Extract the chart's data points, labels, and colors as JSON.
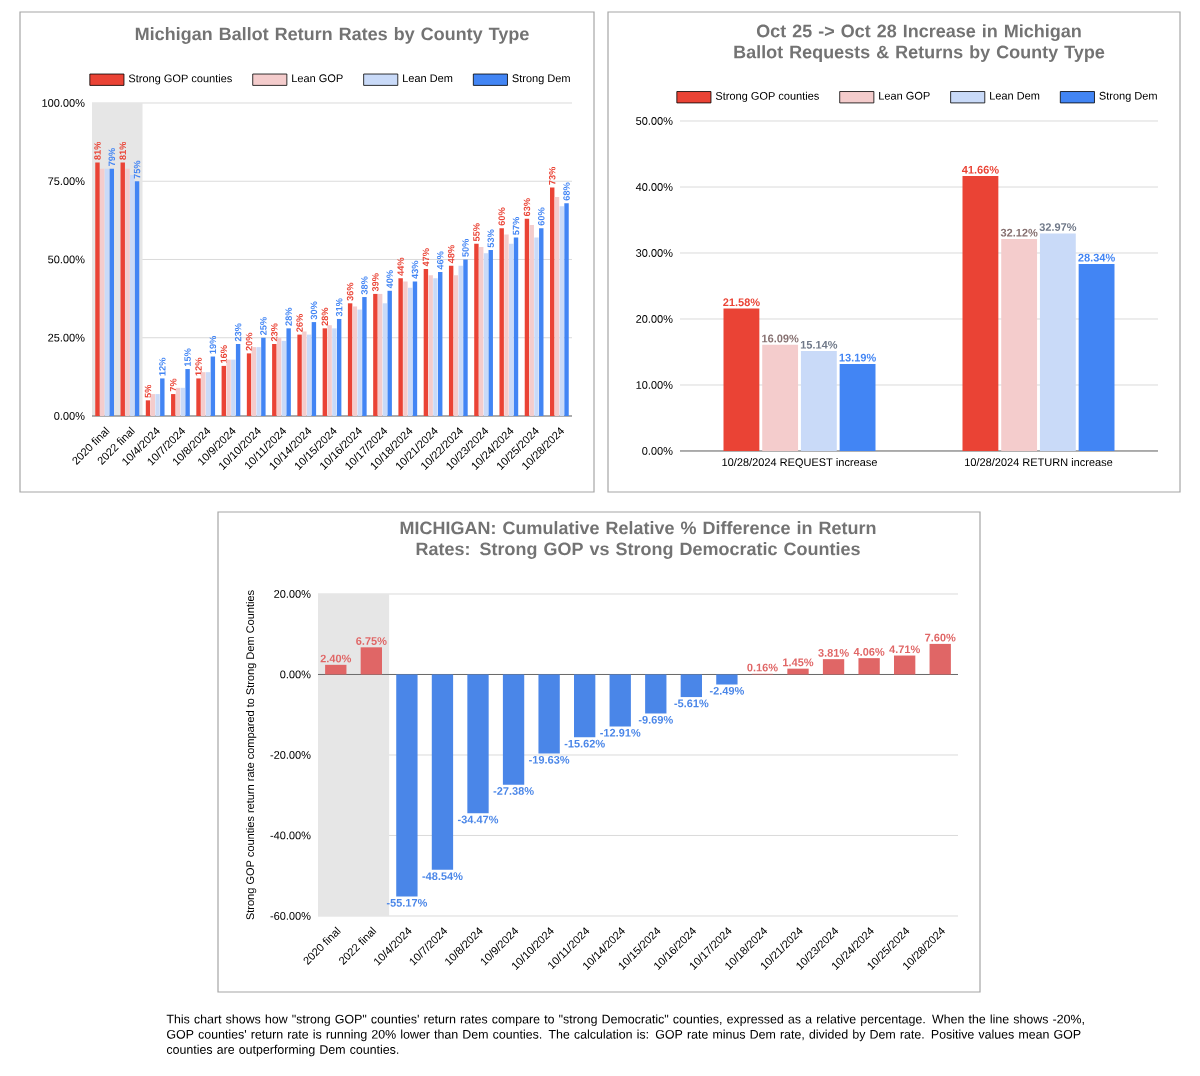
{
  "chart_data": [
    {
      "type": "bar",
      "title": "Michigan Ballot Return Rates by County Type",
      "legend": "top",
      "grid": "y",
      "categories": [
        "2020 final",
        "2022 final",
        "10/4/2024",
        "10/7/2024",
        "10/8/2024",
        "10/9/2024",
        "10/10/2024",
        "10/11/2024",
        "10/14/2024",
        "10/15/2024",
        "10/16/2024",
        "10/17/2024",
        "10/18/2024",
        "10/21/2024",
        "10/22/2024",
        "10/23/2024",
        "10/24/2024",
        "10/25/2024",
        "10/28/2024"
      ],
      "ylim": [
        0,
        100
      ],
      "yticks": [
        {
          "value": 0,
          "label": "0.00%"
        },
        {
          "value": 25,
          "label": "25.00%"
        },
        {
          "value": 50,
          "label": "50.00%"
        },
        {
          "value": 75,
          "label": "75.00%"
        },
        {
          "value": 100,
          "label": "100.00%"
        }
      ],
      "bands": [
        {
          "axis": "x",
          "from": "2020 final",
          "to": "2022 final",
          "color": "#e6e6e6"
        }
      ],
      "series": [
        {
          "name": "Strong GOP counties",
          "color": "#ea4335",
          "values": [
            81,
            81,
            5,
            7,
            12,
            16,
            20,
            23,
            26,
            28,
            36,
            39,
            44,
            47,
            48,
            55,
            60,
            63,
            73
          ],
          "value_labels": [
            "81%",
            "81%",
            "5%",
            "7%",
            "12%",
            "16%",
            "20%",
            "23%",
            "26%",
            "28%",
            "36%",
            "39%",
            "44%",
            "47%",
            "48%",
            "55%",
            "60%",
            "63%",
            "73%"
          ]
        },
        {
          "name": "Lean GOP",
          "color": "#f4cccc",
          "values": [
            79,
            79,
            7,
            9,
            14,
            18,
            22,
            25,
            27,
            29,
            35,
            39,
            43,
            45,
            45,
            54,
            58,
            61,
            70
          ]
        },
        {
          "name": "Lean Dem",
          "color": "#c9daf8",
          "values": [
            79,
            77,
            7,
            9,
            14,
            18,
            22,
            24,
            26,
            28,
            34,
            36,
            41,
            44,
            48,
            52,
            55,
            57,
            67
          ]
        },
        {
          "name": "Strong Dem",
          "color": "#4285f4",
          "values": [
            79,
            75,
            12,
            15,
            19,
            23,
            25,
            28,
            30,
            31,
            38,
            40,
            43,
            46,
            50,
            53,
            57,
            60,
            68
          ],
          "value_labels": [
            "79%",
            "75%",
            "12%",
            "15%",
            "19%",
            "23%",
            "25%",
            "28%",
            "30%",
            "31%",
            "38%",
            "40%",
            "43%",
            "46%",
            "50%",
            "53%",
            "57%",
            "60%",
            "68%"
          ]
        }
      ]
    },
    {
      "type": "bar",
      "title": "Oct 25 -> Oct 28 Increase in Michigan Ballot Requests & Returns by County Type",
      "legend": "top",
      "grid": "y",
      "categories": [
        "10/28/2024 REQUEST increase",
        "10/28/2024 RETURN increase"
      ],
      "ylim": [
        0,
        50
      ],
      "yticks": [
        {
          "value": 0,
          "label": "0.00%"
        },
        {
          "value": 10,
          "label": "10.00%"
        },
        {
          "value": 20,
          "label": "20.00%"
        },
        {
          "value": 30,
          "label": "30.00%"
        },
        {
          "value": 40,
          "label": "40.00%"
        },
        {
          "value": 50,
          "label": "50.00%"
        }
      ],
      "series": [
        {
          "name": "Strong GOP counties",
          "color": "#ea4335",
          "values": [
            21.58,
            41.66
          ],
          "value_labels": [
            "21.58%",
            "41.66%"
          ]
        },
        {
          "name": "Lean GOP",
          "color": "#f4cccc",
          "values": [
            16.09,
            32.12
          ],
          "value_labels": [
            "16.09%",
            "32.12%"
          ]
        },
        {
          "name": "Lean Dem",
          "color": "#c9daf8",
          "values": [
            15.14,
            32.97
          ],
          "value_labels": [
            "15.14%",
            "32.97%"
          ]
        },
        {
          "name": "Strong Dem",
          "color": "#4285f4",
          "values": [
            13.19,
            28.34
          ],
          "value_labels": [
            "13.19%",
            "28.34%"
          ]
        }
      ]
    },
    {
      "type": "bar",
      "title": "MICHIGAN: Cumulative Relative % Difference in Return Rates: Strong GOP vs Strong Democratic Counties",
      "ylabel": "Strong GOP counties return rate compared to Strong Dem Counties",
      "grid": "y",
      "categories": [
        "2020 final",
        "2022 final",
        "10/4/2024",
        "10/7/2024",
        "10/8/2024",
        "10/9/2024",
        "10/10/2024",
        "10/11/2024",
        "10/14/2024",
        "10/15/2024",
        "10/16/2024",
        "10/17/2024",
        "10/18/2024",
        "10/21/2024",
        "10/23/2024",
        "10/24/2024",
        "10/25/2024",
        "10/28/2024"
      ],
      "ylim": [
        -60,
        20
      ],
      "yticks": [
        {
          "value": -60,
          "label": "-60.00%"
        },
        {
          "value": -40,
          "label": "-40.00%"
        },
        {
          "value": -20,
          "label": "-20.00%"
        },
        {
          "value": 0,
          "label": "0.00%"
        },
        {
          "value": 20,
          "label": "20.00%"
        }
      ],
      "bands": [
        {
          "axis": "x",
          "from": "2020 final",
          "to": "2022 final",
          "color": "#e6e6e6"
        }
      ],
      "values": [
        2.4,
        6.75,
        -55.17,
        -48.54,
        -34.47,
        -27.38,
        -19.63,
        -15.62,
        -12.91,
        -9.69,
        -5.61,
        -2.49,
        0.16,
        1.45,
        3.81,
        4.06,
        4.71,
        7.6
      ],
      "colors": [
        "#e06666",
        "#e06666",
        "#4a86e8",
        "#4a86e8",
        "#4a86e8",
        "#4a86e8",
        "#4a86e8",
        "#4a86e8",
        "#4a86e8",
        "#4a86e8",
        "#4a86e8",
        "#4a86e8",
        "#e06666",
        "#e06666",
        "#e06666",
        "#e06666",
        "#e06666",
        "#e06666"
      ],
      "value_labels": [
        "2.40%",
        "6.75%",
        "-55.17%",
        "-48.54%",
        "-34.47%",
        "-27.38%",
        "-19.63%",
        "-15.62%",
        "-12.91%",
        "-9.69%",
        "-5.61%",
        "-2.49%",
        "0.16%",
        "1.45%",
        "3.81%",
        "4.06%",
        "4.71%",
        "7.60%"
      ],
      "annotations": [
        "This chart shows how \"strong GOP\" counties' return rates compare to \"strong Democratic\" counties, expressed as a relative percentage. When the line shows -20%, GOP counties' return rate is running 20% lower than Dem counties. The calculation is: GOP rate minus Dem rate, divided by Dem rate. Positive values mean GOP counties are outperforming Dem counties."
      ]
    }
  ]
}
